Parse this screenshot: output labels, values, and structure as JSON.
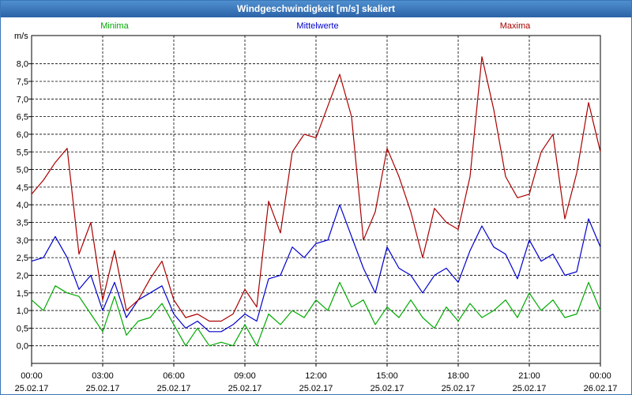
{
  "chart_data": {
    "type": "line",
    "title": "Windgeschwindigkeit [m/s] skaliert",
    "ylabel": "m/s",
    "ylim": [
      -0.5,
      8.8
    ],
    "yticks": [
      "0,0",
      "0,5",
      "1,0",
      "1,5",
      "2,0",
      "2,5",
      "3,0",
      "3,5",
      "4,0",
      "4,5",
      "5,0",
      "5,5",
      "6,0",
      "6,5",
      "7,0",
      "7,5",
      "8,0"
    ],
    "xlim": [
      0,
      24
    ],
    "xticks": [
      {
        "time": "00:00",
        "date": "25.02.17"
      },
      {
        "time": "03:00",
        "date": "25.02.17"
      },
      {
        "time": "06:00",
        "date": "25.02.17"
      },
      {
        "time": "09:00",
        "date": "25.02.17"
      },
      {
        "time": "12:00",
        "date": "25.02.17"
      },
      {
        "time": "15:00",
        "date": "25.02.17"
      },
      {
        "time": "18:00",
        "date": "25.02.17"
      },
      {
        "time": "21:00",
        "date": "25.02.17"
      },
      {
        "time": "00:00",
        "date": "26.02.17"
      }
    ],
    "grid": true,
    "series": [
      {
        "name": "Minima",
        "color": "#00aa00",
        "x": [
          0,
          0.5,
          1,
          1.5,
          2,
          2.5,
          3,
          3.5,
          4,
          4.5,
          5,
          5.5,
          6,
          6.5,
          7,
          7.5,
          8,
          8.5,
          9,
          9.5,
          10,
          10.5,
          11,
          11.5,
          12,
          12.5,
          13,
          13.5,
          14,
          14.5,
          15,
          15.5,
          16,
          16.5,
          17,
          17.5,
          18,
          18.5,
          19,
          19.5,
          20,
          20.5,
          21,
          21.5,
          22,
          22.5,
          23,
          23.5,
          24
        ],
        "values": [
          1.3,
          1.0,
          1.7,
          1.5,
          1.4,
          0.9,
          0.4,
          1.4,
          0.3,
          0.7,
          0.8,
          1.2,
          0.6,
          0.0,
          0.5,
          0.0,
          0.1,
          0.0,
          0.6,
          0.0,
          0.9,
          0.6,
          1.0,
          0.8,
          1.3,
          1.0,
          1.8,
          1.1,
          1.3,
          0.6,
          1.1,
          0.8,
          1.3,
          0.8,
          0.5,
          1.1,
          0.7,
          1.2,
          0.8,
          1.0,
          1.3,
          0.8,
          1.5,
          1.0,
          1.3,
          0.8,
          0.9,
          1.8,
          1.0
        ]
      },
      {
        "name": "Mittelwerte",
        "color": "#0000cc",
        "x": [
          0,
          0.5,
          1,
          1.5,
          2,
          2.5,
          3,
          3.5,
          4,
          4.5,
          5,
          5.5,
          6,
          6.5,
          7,
          7.5,
          8,
          8.5,
          9,
          9.5,
          10,
          10.5,
          11,
          11.5,
          12,
          12.5,
          13,
          13.5,
          14,
          14.5,
          15,
          15.5,
          16,
          16.5,
          17,
          17.5,
          18,
          18.5,
          19,
          19.5,
          20,
          20.5,
          21,
          21.5,
          22,
          22.5,
          23,
          23.5,
          24
        ],
        "values": [
          2.4,
          2.5,
          3.1,
          2.5,
          1.6,
          2.0,
          1.0,
          1.8,
          0.8,
          1.3,
          1.5,
          1.7,
          0.9,
          0.5,
          0.7,
          0.4,
          0.4,
          0.6,
          0.9,
          0.7,
          1.9,
          2.0,
          2.8,
          2.5,
          2.9,
          3.0,
          4.0,
          3.1,
          2.2,
          1.5,
          2.8,
          2.2,
          2.0,
          1.5,
          2.0,
          2.2,
          1.8,
          2.7,
          3.4,
          2.8,
          2.6,
          1.9,
          3.0,
          2.4,
          2.6,
          2.0,
          2.1,
          3.6,
          2.8
        ]
      },
      {
        "name": "Maxima",
        "color": "#aa0000",
        "x": [
          0,
          0.5,
          1,
          1.5,
          2,
          2.5,
          3,
          3.5,
          4,
          4.5,
          5,
          5.5,
          6,
          6.5,
          7,
          7.5,
          8,
          8.5,
          9,
          9.5,
          10,
          10.5,
          11,
          11.5,
          12,
          12.5,
          13,
          13.5,
          14,
          14.5,
          15,
          15.5,
          16,
          16.5,
          17,
          17.5,
          18,
          18.5,
          19,
          19.5,
          20,
          20.5,
          21,
          21.5,
          22,
          22.5,
          23,
          23.5,
          24
        ],
        "values": [
          4.3,
          4.7,
          5.2,
          5.6,
          2.6,
          3.5,
          1.3,
          2.7,
          1.0,
          1.3,
          1.9,
          2.4,
          1.3,
          0.8,
          0.9,
          0.7,
          0.7,
          0.9,
          1.6,
          1.1,
          4.1,
          3.2,
          5.5,
          6.0,
          5.9,
          6.8,
          7.7,
          6.5,
          3.0,
          3.8,
          5.6,
          4.8,
          3.8,
          2.5,
          3.9,
          3.5,
          3.3,
          4.8,
          8.2,
          6.7,
          4.8,
          4.2,
          4.3,
          5.5,
          6.0,
          3.6,
          4.9,
          6.9,
          5.5
        ]
      }
    ]
  }
}
